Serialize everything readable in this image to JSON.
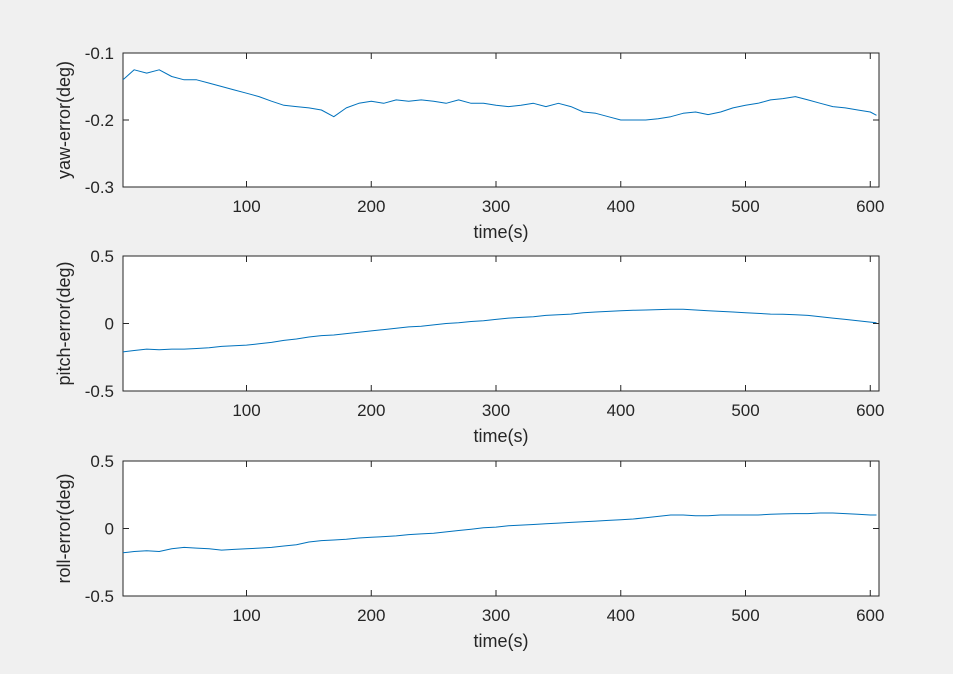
{
  "figure": {
    "background": "#f0f0f0",
    "line_color": "#0072bd"
  },
  "chart_data": [
    {
      "type": "line",
      "xlabel": "time(s)",
      "ylabel": "yaw-error(deg)",
      "xlim": [
        1,
        607
      ],
      "ylim": [
        -0.3,
        -0.1
      ],
      "xticks": [
        100,
        200,
        300,
        400,
        500,
        600
      ],
      "yticks": [
        -0.3,
        -0.2,
        -0.1
      ],
      "yticklabels": [
        "-0.3",
        "-0.2",
        "-0.1"
      ],
      "grid": false,
      "series": [
        {
          "x": [
            1,
            10,
            20,
            30,
            40,
            50,
            60,
            70,
            80,
            90,
            100,
            110,
            120,
            130,
            140,
            150,
            160,
            170,
            180,
            190,
            200,
            210,
            220,
            230,
            240,
            250,
            260,
            270,
            280,
            290,
            300,
            310,
            320,
            330,
            340,
            350,
            360,
            370,
            380,
            390,
            400,
            410,
            420,
            430,
            440,
            450,
            460,
            470,
            480,
            490,
            500,
            510,
            520,
            530,
            540,
            550,
            560,
            570,
            580,
            590,
            600,
            605
          ],
          "y": [
            -0.14,
            -0.125,
            -0.13,
            -0.125,
            -0.135,
            -0.14,
            -0.14,
            -0.145,
            -0.15,
            -0.155,
            -0.16,
            -0.165,
            -0.172,
            -0.178,
            -0.18,
            -0.182,
            -0.185,
            -0.195,
            -0.182,
            -0.175,
            -0.172,
            -0.175,
            -0.17,
            -0.172,
            -0.17,
            -0.172,
            -0.175,
            -0.17,
            -0.175,
            -0.175,
            -0.178,
            -0.18,
            -0.178,
            -0.175,
            -0.18,
            -0.175,
            -0.18,
            -0.188,
            -0.19,
            -0.195,
            -0.2,
            -0.2,
            -0.2,
            -0.198,
            -0.195,
            -0.19,
            -0.188,
            -0.192,
            -0.188,
            -0.182,
            -0.178,
            -0.175,
            -0.17,
            -0.168,
            -0.165,
            -0.17,
            -0.175,
            -0.18,
            -0.182,
            -0.185,
            -0.188,
            -0.193
          ]
        }
      ]
    },
    {
      "type": "line",
      "xlabel": "time(s)",
      "ylabel": "pitch-error(deg)",
      "xlim": [
        1,
        607
      ],
      "ylim": [
        -0.5,
        0.5
      ],
      "xticks": [
        100,
        200,
        300,
        400,
        500,
        600
      ],
      "yticks": [
        -0.5,
        0,
        0.5
      ],
      "yticklabels": [
        "-0.5",
        "0",
        "0.5"
      ],
      "grid": false,
      "series": [
        {
          "x": [
            1,
            10,
            20,
            30,
            40,
            50,
            60,
            70,
            80,
            90,
            100,
            110,
            120,
            130,
            140,
            150,
            160,
            170,
            180,
            190,
            200,
            210,
            220,
            230,
            240,
            250,
            260,
            270,
            280,
            290,
            300,
            310,
            320,
            330,
            340,
            350,
            360,
            370,
            380,
            390,
            400,
            410,
            420,
            430,
            440,
            450,
            460,
            470,
            480,
            490,
            500,
            510,
            520,
            530,
            540,
            550,
            560,
            570,
            580,
            590,
            600,
            605
          ],
          "y": [
            -0.21,
            -0.2,
            -0.19,
            -0.195,
            -0.19,
            -0.19,
            -0.185,
            -0.18,
            -0.17,
            -0.165,
            -0.16,
            -0.15,
            -0.14,
            -0.125,
            -0.115,
            -0.1,
            -0.09,
            -0.085,
            -0.075,
            -0.065,
            -0.055,
            -0.045,
            -0.035,
            -0.025,
            -0.02,
            -0.01,
            0.0,
            0.005,
            0.015,
            0.02,
            0.03,
            0.04,
            0.045,
            0.05,
            0.06,
            0.065,
            0.07,
            0.08,
            0.085,
            0.09,
            0.095,
            0.098,
            0.1,
            0.103,
            0.106,
            0.105,
            0.1,
            0.095,
            0.09,
            0.085,
            0.08,
            0.075,
            0.07,
            0.068,
            0.065,
            0.06,
            0.05,
            0.04,
            0.03,
            0.02,
            0.01,
            0.005
          ]
        }
      ]
    },
    {
      "type": "line",
      "xlabel": "time(s)",
      "ylabel": "roll-error(deg)",
      "xlim": [
        1,
        607
      ],
      "ylim": [
        -0.5,
        0.5
      ],
      "xticks": [
        100,
        200,
        300,
        400,
        500,
        600
      ],
      "yticks": [
        -0.5,
        0,
        0.5
      ],
      "yticklabels": [
        "-0.5",
        "0",
        "0.5"
      ],
      "grid": false,
      "series": [
        {
          "x": [
            1,
            10,
            20,
            30,
            40,
            50,
            60,
            70,
            80,
            90,
            100,
            110,
            120,
            130,
            140,
            150,
            160,
            170,
            180,
            190,
            200,
            210,
            220,
            230,
            240,
            250,
            260,
            270,
            280,
            290,
            300,
            310,
            320,
            330,
            340,
            350,
            360,
            370,
            380,
            390,
            400,
            410,
            420,
            430,
            440,
            450,
            460,
            470,
            480,
            490,
            500,
            510,
            520,
            530,
            540,
            550,
            560,
            570,
            580,
            590,
            600,
            605
          ],
          "y": [
            -0.18,
            -0.17,
            -0.165,
            -0.17,
            -0.15,
            -0.14,
            -0.145,
            -0.15,
            -0.16,
            -0.155,
            -0.15,
            -0.145,
            -0.14,
            -0.13,
            -0.12,
            -0.1,
            -0.09,
            -0.085,
            -0.08,
            -0.07,
            -0.065,
            -0.06,
            -0.055,
            -0.045,
            -0.04,
            -0.035,
            -0.025,
            -0.015,
            -0.005,
            0.005,
            0.01,
            0.02,
            0.025,
            0.03,
            0.035,
            0.04,
            0.045,
            0.05,
            0.055,
            0.06,
            0.065,
            0.07,
            0.08,
            0.09,
            0.1,
            0.1,
            0.095,
            0.095,
            0.1,
            0.1,
            0.1,
            0.1,
            0.105,
            0.108,
            0.11,
            0.11,
            0.115,
            0.115,
            0.11,
            0.105,
            0.1,
            0.1
          ]
        }
      ]
    }
  ]
}
